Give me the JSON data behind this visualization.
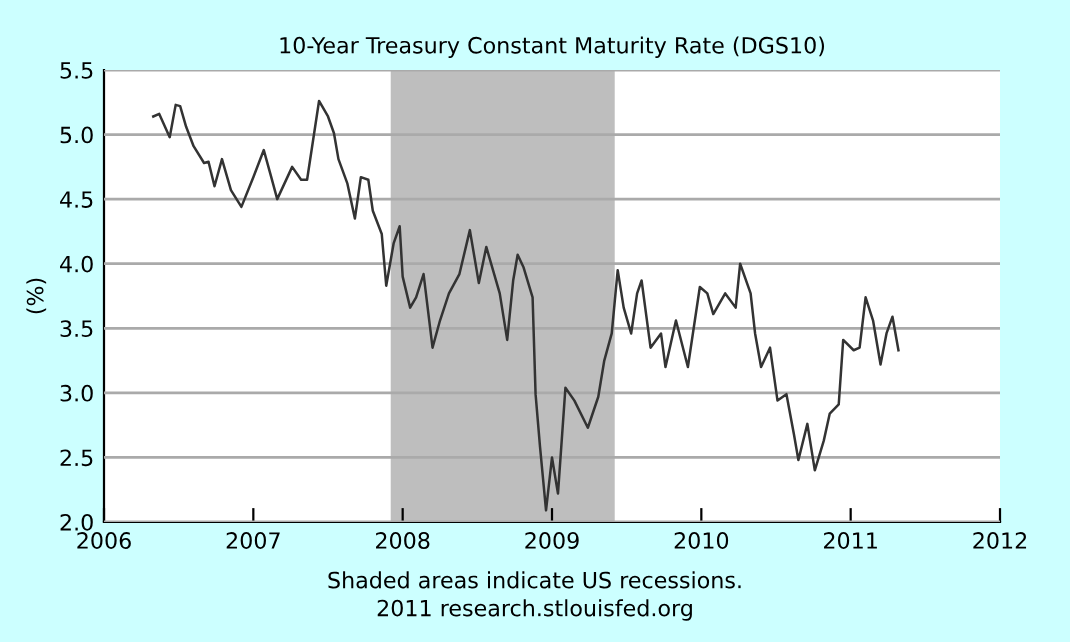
{
  "chart_data": {
    "type": "line",
    "title": "10-Year Treasury Constant Maturity Rate (DGS10)",
    "ylabel": "(%)",
    "annotations": [
      "Shaded areas indicate US recessions.",
      "2011 research.stlouisfed.org"
    ],
    "xlim": [
      2006,
      2012
    ],
    "xticks": [
      2006,
      2007,
      2008,
      2009,
      2010,
      2011,
      2012
    ],
    "ylim": [
      2.0,
      5.5
    ],
    "yticks": [
      {
        "value": 2.0,
        "label": "2.0"
      },
      2.5,
      {
        "value": 3.0,
        "label": "3.0"
      },
      3.5,
      {
        "value": 4.0,
        "label": "4.0"
      },
      4.5,
      {
        "value": 5.0,
        "label": "5.0"
      },
      5.5
    ],
    "grid": "y",
    "legend": false,
    "bands": [
      {
        "axis": "x",
        "from": 2007.92,
        "to": 2009.42,
        "color": "#bebebe"
      }
    ],
    "series": [
      {
        "color": "#333333",
        "x": [
          2006.33,
          2006.37,
          2006.44,
          2006.48,
          2006.51,
          2006.55,
          2006.6,
          2006.67,
          2006.7,
          2006.74,
          2006.79,
          2006.85,
          2006.92,
          2007.0,
          2007.07,
          2007.12,
          2007.16,
          2007.26,
          2007.32,
          2007.36,
          2007.44,
          2007.5,
          2007.54,
          2007.57,
          2007.63,
          2007.68,
          2007.72,
          2007.77,
          2007.8,
          2007.86,
          2007.89,
          2007.94,
          2007.98,
          2008.0,
          2008.05,
          2008.09,
          2008.14,
          2008.2,
          2008.25,
          2008.31,
          2008.38,
          2008.45,
          2008.51,
          2008.56,
          2008.65,
          2008.7,
          2008.74,
          2008.77,
          2008.81,
          2008.87,
          2008.89,
          2008.92,
          2008.96,
          2009.0,
          2009.04,
          2009.09,
          2009.15,
          2009.24,
          2009.31,
          2009.35,
          2009.4,
          2009.44,
          2009.48,
          2009.53,
          2009.57,
          2009.6,
          2009.66,
          2009.73,
          2009.76,
          2009.83,
          2009.91,
          2009.99,
          2010.04,
          2010.08,
          2010.16,
          2010.23,
          2010.26,
          2010.33,
          2010.36,
          2010.4,
          2010.46,
          2010.51,
          2010.57,
          2010.62,
          2010.65,
          2010.71,
          2010.76,
          2010.82,
          2010.86,
          2010.92,
          2010.95,
          2011.02,
          2011.06,
          2011.1,
          2011.15,
          2011.2,
          2011.24,
          2011.28,
          2011.32
        ],
        "values": [
          5.14,
          5.16,
          4.98,
          5.23,
          5.22,
          5.06,
          4.91,
          4.78,
          4.79,
          4.6,
          4.81,
          4.57,
          4.44,
          4.67,
          4.88,
          4.67,
          4.5,
          4.75,
          4.65,
          4.65,
          5.26,
          5.14,
          5.01,
          4.81,
          4.62,
          4.35,
          4.67,
          4.65,
          4.41,
          4.23,
          3.83,
          4.16,
          4.29,
          3.9,
          3.66,
          3.74,
          3.92,
          3.35,
          3.56,
          3.77,
          3.92,
          4.26,
          3.85,
          4.13,
          3.77,
          3.41,
          3.87,
          4.07,
          3.97,
          3.74,
          2.99,
          2.58,
          2.09,
          2.5,
          2.22,
          3.04,
          2.94,
          2.73,
          2.97,
          3.25,
          3.46,
          3.95,
          3.66,
          3.46,
          3.77,
          3.87,
          3.35,
          3.46,
          3.2,
          3.56,
          3.2,
          3.82,
          3.77,
          3.61,
          3.77,
          3.66,
          4.0,
          3.77,
          3.46,
          3.2,
          3.35,
          2.94,
          2.99,
          2.68,
          2.48,
          2.76,
          2.4,
          2.63,
          2.84,
          2.91,
          3.41,
          3.33,
          3.35,
          3.74,
          3.56,
          3.22,
          3.46,
          3.59,
          3.33
        ]
      }
    ]
  }
}
